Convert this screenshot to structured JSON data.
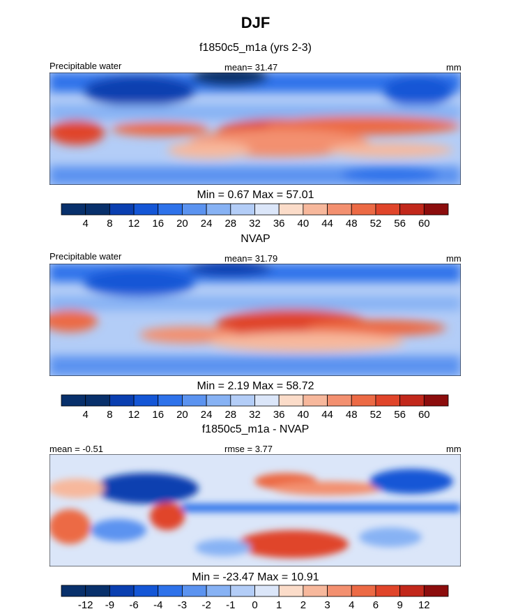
{
  "title": "DJF",
  "panels": [
    {
      "subtitle": "f1850c5_m1a (yrs 2-3)",
      "left_label": "Precipitable water",
      "center_label": "mean=  31.47",
      "right_label": "mm",
      "minmax": "Min =   0.67 Max =  57.01",
      "colorbar_labels": [
        "4",
        "8",
        "12",
        "16",
        "20",
        "24",
        "28",
        "32",
        "36",
        "40",
        "44",
        "48",
        "52",
        "56",
        "60"
      ]
    },
    {
      "subtitle": "NVAP",
      "left_label": "Precipitable water",
      "center_label": "mean=  31.79",
      "right_label": "mm",
      "minmax": "Min =   2.19 Max =  58.72",
      "colorbar_labels": [
        "4",
        "8",
        "12",
        "16",
        "20",
        "24",
        "28",
        "32",
        "36",
        "40",
        "44",
        "48",
        "52",
        "56",
        "60"
      ]
    },
    {
      "subtitle": "f1850c5_m1a - NVAP",
      "left_label": "mean =  -0.51",
      "center_label": "rmse =   3.77",
      "right_label": "mm",
      "minmax": "Min = -23.47 Max =  10.91",
      "colorbar_labels": [
        "-12",
        "-9",
        "-6",
        "-4",
        "-3",
        "-2",
        "-1",
        "0",
        "1",
        "2",
        "3",
        "4",
        "6",
        "9",
        "12"
      ]
    }
  ],
  "colors": {
    "scale": [
      "#08306b",
      "#0a3fb0",
      "#1456d6",
      "#2e72ea",
      "#5b93f0",
      "#87b2f4",
      "#b3cdf7",
      "#dbe6f9",
      "#fbdcc9",
      "#f7b89c",
      "#f39070",
      "#ec6a45",
      "#e0452a",
      "#c2281b",
      "#8c0d0d"
    ]
  },
  "chart_data": [
    {
      "type": "heatmap",
      "title": "f1850c5_m1a (yrs 2-3)",
      "variable": "Precipitable water",
      "units": "mm",
      "mean": 31.47,
      "min": 0.67,
      "max": 57.01,
      "contour_levels": [
        4,
        8,
        12,
        16,
        20,
        24,
        28,
        32,
        36,
        40,
        44,
        48,
        52,
        56,
        60
      ]
    },
    {
      "type": "heatmap",
      "title": "NVAP",
      "variable": "Precipitable water",
      "units": "mm",
      "mean": 31.79,
      "min": 2.19,
      "max": 58.72,
      "contour_levels": [
        4,
        8,
        12,
        16,
        20,
        24,
        28,
        32,
        36,
        40,
        44,
        48,
        52,
        56,
        60
      ]
    },
    {
      "type": "heatmap",
      "title": "f1850c5_m1a - NVAP",
      "units": "mm",
      "mean": -0.51,
      "rmse": 3.77,
      "min": -23.47,
      "max": 10.91,
      "contour_levels": [
        -12,
        -9,
        -6,
        -4,
        -3,
        -2,
        -1,
        0,
        1,
        2,
        3,
        4,
        6,
        9,
        12
      ]
    }
  ]
}
